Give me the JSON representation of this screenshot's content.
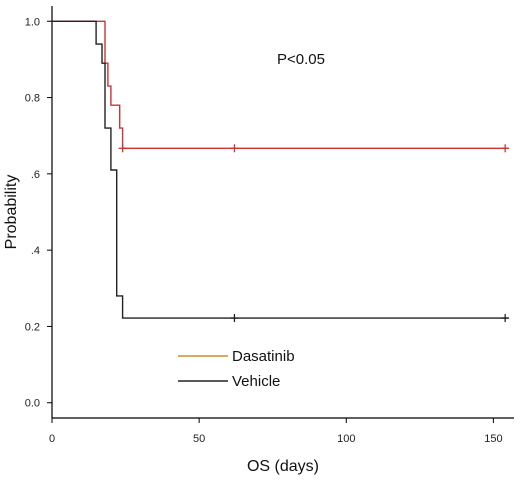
{
  "chart_data": {
    "type": "line",
    "subtype": "kaplan-meier step",
    "title": "",
    "xlabel": "OS (days)",
    "ylabel": "Probability",
    "xlim": [
      0,
      157
    ],
    "ylim": [
      -0.04,
      1.04
    ],
    "x_ticks": [
      0,
      50,
      100,
      150
    ],
    "x_tick_labels": [
      "0",
      "50",
      "100",
      "150"
    ],
    "y_ticks": [
      0.0,
      0.2,
      0.4,
      0.6,
      0.8,
      1.0
    ],
    "y_tick_labels": [
      "0.0",
      "0.2",
      ".4",
      ".6",
      "0.8",
      "1.0"
    ],
    "grid": false,
    "legend_position": "bottom-left",
    "annotation": "P<0.05",
    "series": [
      {
        "name": "Dasatinib",
        "color": "#cc3333",
        "legend_color": "#c8922a",
        "steps": [
          [
            0,
            1.0
          ],
          [
            18,
            1.0
          ],
          [
            18,
            0.89
          ],
          [
            19,
            0.89
          ],
          [
            19,
            0.83
          ],
          [
            20,
            0.83
          ],
          [
            20,
            0.78
          ],
          [
            23,
            0.78
          ],
          [
            23,
            0.72
          ],
          [
            24,
            0.72
          ],
          [
            24,
            0.667
          ],
          [
            155,
            0.667
          ]
        ],
        "censored": [
          [
            24,
            0.667
          ],
          [
            62,
            0.667
          ],
          [
            154,
            0.667
          ]
        ]
      },
      {
        "name": "Vehicle",
        "color": "#222222",
        "legend_color": "#222222",
        "steps": [
          [
            0,
            1.0
          ],
          [
            15,
            1.0
          ],
          [
            15,
            0.94
          ],
          [
            17,
            0.94
          ],
          [
            17,
            0.89
          ],
          [
            18,
            0.89
          ],
          [
            18,
            0.72
          ],
          [
            20,
            0.72
          ],
          [
            20,
            0.61
          ],
          [
            22,
            0.61
          ],
          [
            22,
            0.28
          ],
          [
            24,
            0.28
          ],
          [
            24,
            0.222
          ],
          [
            155,
            0.222
          ]
        ],
        "censored": [
          [
            62,
            0.222
          ],
          [
            154,
            0.222
          ]
        ]
      }
    ]
  }
}
